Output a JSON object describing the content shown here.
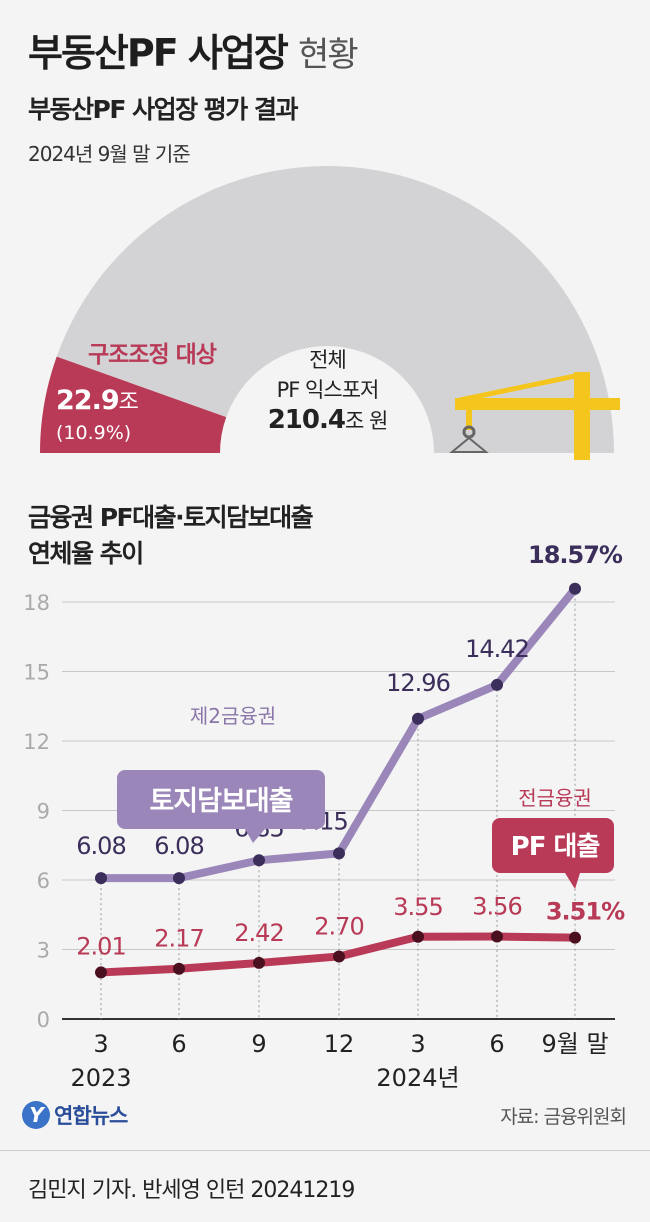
{
  "header": {
    "title_bold": "부동산PF 사업장",
    "title_light": "현황",
    "subtitle": "부동산PF 사업장 평가 결과",
    "date": "2024년 9월 말 기준"
  },
  "donut": {
    "segment_label": "구조조정 대상",
    "segment_value": "22.9",
    "segment_unit": "조",
    "segment_pct": "(10.9%)",
    "segment_fraction": 0.109,
    "center_line1": "전체",
    "center_line2": "PF 익스포저",
    "center_value": "210.4",
    "center_unit": "조 원",
    "colors": {
      "segment": "#b83a57",
      "rest": "#d3d3d5"
    }
  },
  "chart_data": {
    "type": "line",
    "title": "금융권 PF대출·토지담보대출\n연체율 추이",
    "x": [
      "3",
      "6",
      "9",
      "12",
      "3",
      "6",
      "9월 말"
    ],
    "x_year_labels": [
      "2023",
      "2024년"
    ],
    "ylim": [
      0,
      18
    ],
    "yticks": [
      "0",
      "3",
      "6",
      "9",
      "12",
      "15",
      "18"
    ],
    "grid": true,
    "series": [
      {
        "name": "토지담보대출",
        "group_label": "제2금융권",
        "color": "#9a86b8",
        "dot": "#3b2e5a",
        "values": [
          6.08,
          6.08,
          6.85,
          7.15,
          12.96,
          14.42,
          18.57
        ],
        "labels": [
          "6.08",
          "6.08",
          "6.85",
          "7.15",
          "12.96",
          "14.42",
          "18.57%"
        ]
      },
      {
        "name": "PF 대출",
        "group_label": "전금융권",
        "color": "#b83a57",
        "dot": "#4a1020",
        "values": [
          2.01,
          2.17,
          2.42,
          2.7,
          3.55,
          3.56,
          3.51
        ],
        "labels": [
          "2.01",
          "2.17",
          "2.42",
          "2.70",
          "3.55",
          "3.56",
          "3.51%"
        ]
      }
    ]
  },
  "footer": {
    "logo": "연합뉴스",
    "source": "자료: 금융위원회",
    "byline": "김민지 기자. 반세영 인턴  20241219"
  }
}
